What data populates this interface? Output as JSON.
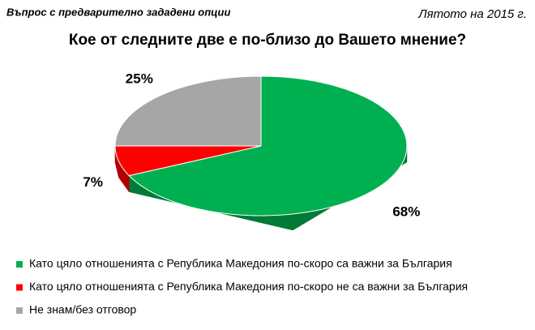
{
  "chart_data": {
    "type": "pie",
    "note_left": "Въпрос с предварително зададени опции",
    "note_right": "Лятото на 2015 г.",
    "title": "Кое от следните две е по-близо до Вашето мнение?",
    "categories": [
      "Като цяло отношенията с Република Македония по-скоро са важни за България",
      "Като цяло отношенията с Република Македония по-скоро не са важни за България",
      "Не знам/без отговор"
    ],
    "values": [
      68,
      7,
      25
    ],
    "value_labels": [
      "68%",
      "7%",
      "25%"
    ],
    "colors": [
      "#00b050",
      "#ff0000",
      "#a6a6a6"
    ],
    "side_colors": [
      "#007a37",
      "#b00000",
      "#777777"
    ],
    "legend": "bottom-left"
  }
}
